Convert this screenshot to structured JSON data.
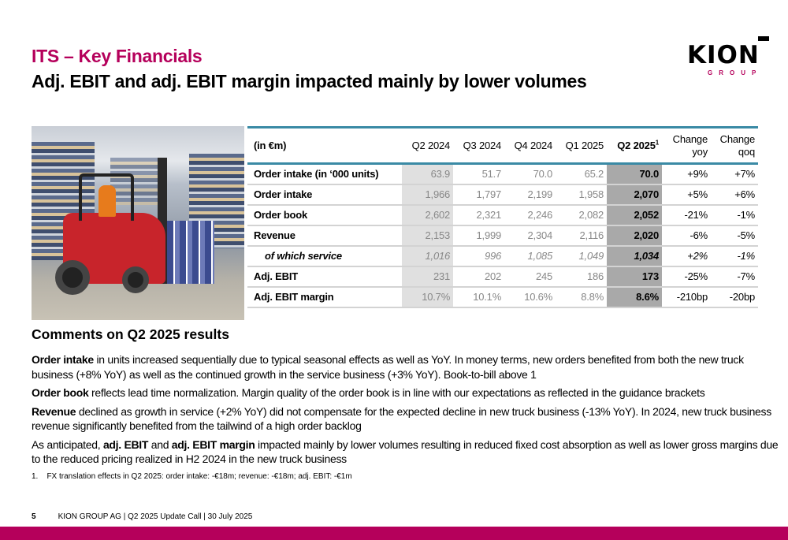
{
  "header": {
    "title": "ITS – Key Financials",
    "subtitle": "Adj. EBIT and adj. EBIT margin impacted mainly by lower volumes"
  },
  "logo": {
    "text": "KION",
    "sub": "GROUP"
  },
  "table": {
    "unit": "(in €m)",
    "columns": [
      "Q2 2024",
      "Q3 2024",
      "Q4 2024",
      "Q1 2025",
      "Q2 2025"
    ],
    "q2_footnote": "1",
    "change_yoy": "Change yoy",
    "change_qoq": "Change qoq",
    "rows": [
      {
        "label": "Order intake (in ‘000 units)",
        "values": [
          "63.9",
          "51.7",
          "70.0",
          "65.2",
          "70.0"
        ],
        "yoy": "+9%",
        "qoq": "+7%"
      },
      {
        "label": "Order intake",
        "values": [
          "1,966",
          "1,797",
          "2,199",
          "1,958",
          "2,070"
        ],
        "yoy": "+5%",
        "qoq": "+6%"
      },
      {
        "label": "Order book",
        "values": [
          "2,602",
          "2,321",
          "2,246",
          "2,082",
          "2,052"
        ],
        "yoy": "-21%",
        "qoq": "-1%"
      },
      {
        "label": "Revenue",
        "values": [
          "2,153",
          "1,999",
          "2,304",
          "2,116",
          "2,020"
        ],
        "yoy": "-6%",
        "qoq": "-5%"
      },
      {
        "label": "of which service",
        "values": [
          "1,016",
          "996",
          "1,085",
          "1,049",
          "1,034"
        ],
        "yoy": "+2%",
        "qoq": "-1%",
        "italic": true
      },
      {
        "label": "Adj. EBIT",
        "values": [
          "231",
          "202",
          "245",
          "186",
          "173"
        ],
        "yoy": "-25%",
        "qoq": "-7%"
      },
      {
        "label": "Adj. EBIT margin",
        "values": [
          "10.7%",
          "10.1%",
          "10.6%",
          "8.8%",
          "8.6%"
        ],
        "yoy": "-210bp",
        "qoq": "-20bp"
      }
    ]
  },
  "comments": {
    "title": "Comments on Q2 2025 results",
    "p1_b": "Order intake",
    "p1": " in units increased sequentially due to typical seasonal effects as well as YoY. In money terms, new orders benefited from both the new truck business (+8% YoY) as well as the continued growth in the service business (+3% YoY). Book-to-bill above 1",
    "p2_b": "Order book",
    "p2": " reflects lead time normalization. Margin quality of the order book is in line with our expectations as reflected in the guidance brackets",
    "p3_b": "Revenue",
    "p3": " declined as growth in service (+2% YoY) did not compensate for the expected decline in new truck business (-13% YoY). In 2024, new truck business revenue significantly benefited from the tailwind of a high order backlog",
    "p4_a": "As anticipated, ",
    "p4_b1": "adj. EBIT",
    "p4_c": " and ",
    "p4_b2": "adj. EBIT margin",
    "p4_d": " impacted mainly by lower volumes resulting in reduced fixed cost absorption as well as lower gross margins due to the reduced pricing realized in H2 2024 in the new truck business"
  },
  "footnote": "1.    FX translation effects in Q2 2025: order intake: -€18m; revenue: -€18m; adj. EBIT: -€1m",
  "footer": {
    "page": "5",
    "text": "KION GROUP AG | Q2 2025 Update Call | 30 July 2025"
  },
  "colors": {
    "brand": "#b5005b",
    "table_rule": "#3a8aa5"
  }
}
